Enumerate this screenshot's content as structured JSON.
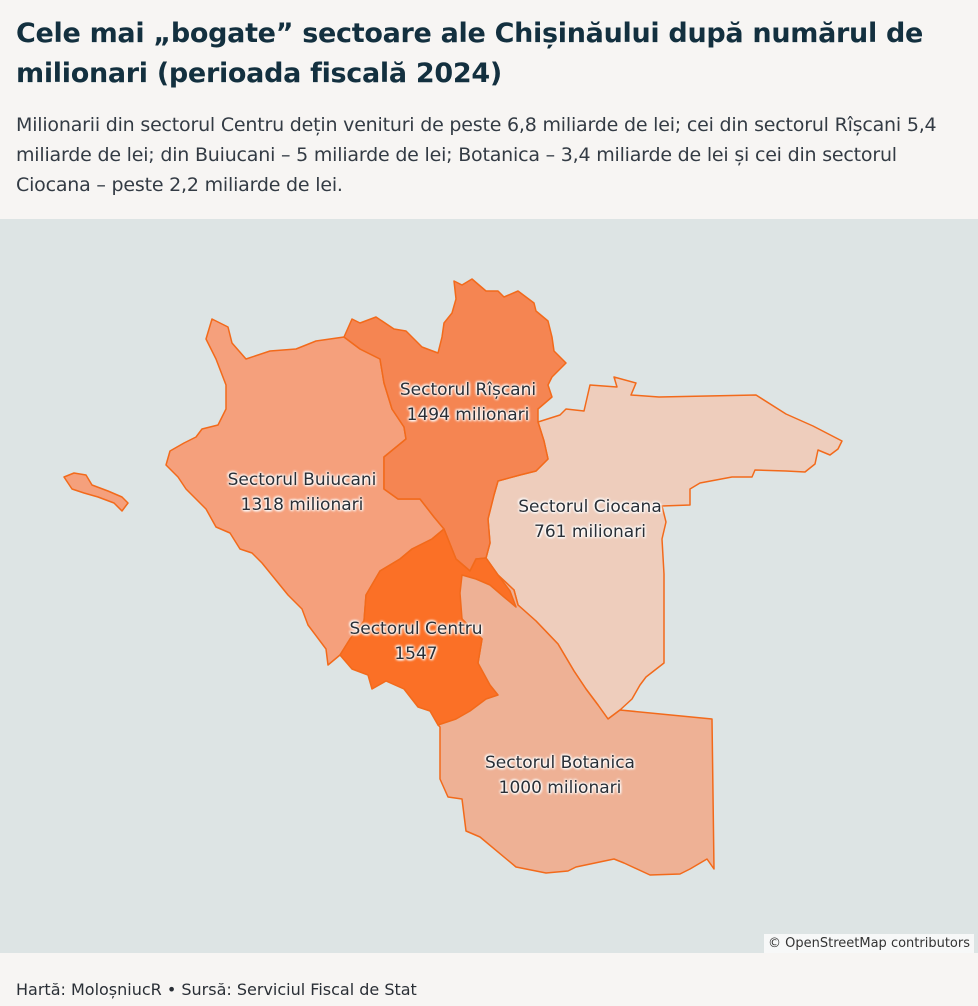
{
  "header": {
    "title": "Cele mai „bogate” sectoare ale Chișinăului după numărul de milionari (perioada fiscală 2024)",
    "subtitle": "Milionarii din sectorul Centru dețin venituri de peste 6,8 miliarde de lei; cei din sectorul Rîșcani 5,4 miliarde de lei; din Buiucani – 5 miliarde de lei; Botanica – 3,4 miliarde de lei și cei din sectorul Ciocana – peste 2,2 miliarde de lei."
  },
  "map": {
    "background_color": "#dde4e4",
    "border_color": "#f26a1b",
    "sectors": [
      {
        "id": "buiucani",
        "name": "Sectorul Buiucani",
        "value": "1318 milionari",
        "fill": "#f5a07c"
      },
      {
        "id": "riscani",
        "name": "Sectorul Rîșcani",
        "value": "1494 milionari",
        "fill": "#f58552"
      },
      {
        "id": "ciocana",
        "name": "Sectorul Ciocana",
        "value": "761 milionari",
        "fill": "#eecdbc"
      },
      {
        "id": "centru",
        "name": "Sectorul Centru",
        "value": "1547",
        "fill": "#fb7026"
      },
      {
        "id": "botanica",
        "name": "Sectorul Botanica",
        "value": "1000 milionari",
        "fill": "#eeb195"
      }
    ],
    "attribution": "© OpenStreetMap contributors"
  },
  "footer": {
    "text": "Hartă: MoloșniucR • Sursă: Serviciul Fiscal de Stat"
  }
}
